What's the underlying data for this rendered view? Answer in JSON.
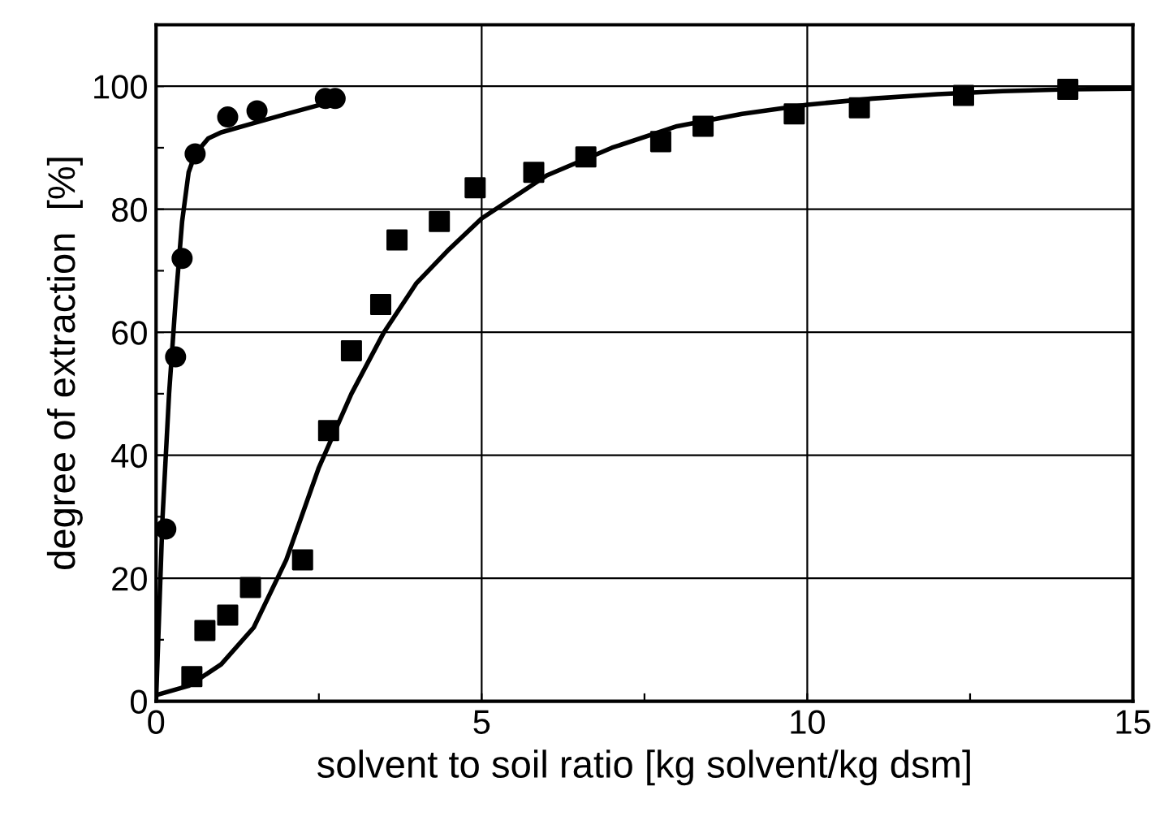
{
  "chart_data": {
    "type": "scatter",
    "xlabel": "solvent to soil ratio [kg solvent/kg dsm]",
    "ylabel": "degree of extraction  [%]",
    "xlim": [
      0,
      15
    ],
    "ylim": [
      0,
      110
    ],
    "xticks": [
      0,
      {
        "value": 2.5,
        "label": null
      },
      5,
      {
        "value": 7.5,
        "label": null
      },
      10,
      {
        "value": 12.5,
        "label": null
      },
      15
    ],
    "yticks": [
      0,
      {
        "value": 10,
        "label": null
      },
      20,
      {
        "value": 30,
        "label": null
      },
      40,
      {
        "value": 50,
        "label": null
      },
      60,
      {
        "value": 70,
        "label": null
      },
      80,
      {
        "value": 90,
        "label": null
      },
      100
    ],
    "grid": true,
    "series": [
      {
        "marker": "circle",
        "color": "#000000",
        "x": [
          0.15,
          0.3,
          0.4,
          0.6,
          1.1,
          1.55,
          2.6,
          2.75
        ],
        "values": [
          28,
          56,
          72,
          89,
          95,
          96,
          98,
          98
        ]
      },
      {
        "marker": "square",
        "color": "#000000",
        "x": [
          0.55,
          0.75,
          1.1,
          1.45,
          2.25,
          2.65,
          3.0,
          3.45,
          3.7,
          4.35,
          4.9,
          5.8,
          6.6,
          7.75,
          8.4,
          9.8,
          10.8,
          12.4,
          14
        ],
        "values": [
          4,
          11.5,
          14,
          18.5,
          23,
          44,
          57,
          64.5,
          75,
          78,
          83.5,
          86,
          88.5,
          91,
          93.5,
          95.5,
          96.5,
          98.5,
          99.5
        ]
      },
      {
        "type": "line",
        "line_style": "solid",
        "color": "#000000",
        "x": [
          0,
          0.05,
          0.1,
          0.2,
          0.3,
          0.4,
          0.5,
          0.6,
          0.8,
          1.0,
          1.5,
          2.0,
          2.7
        ],
        "values": [
          0,
          15,
          30,
          50,
          65,
          78,
          86,
          89,
          91.5,
          92.5,
          94,
          95.5,
          97.5
        ]
      },
      {
        "type": "line",
        "line_style": "solid",
        "color": "#000000",
        "x": [
          0,
          0.5,
          1.0,
          1.5,
          2.0,
          2.5,
          3.0,
          3.5,
          4,
          4.5,
          5,
          6,
          7,
          8,
          9,
          10,
          11,
          12,
          13,
          14,
          15
        ],
        "values": [
          1,
          2.5,
          6,
          12,
          23,
          38,
          50,
          60,
          68,
          73.5,
          78.5,
          85.5,
          90,
          93.5,
          95.5,
          97,
          98,
          98.7,
          99.2,
          99.5,
          99.6
        ]
      }
    ]
  }
}
